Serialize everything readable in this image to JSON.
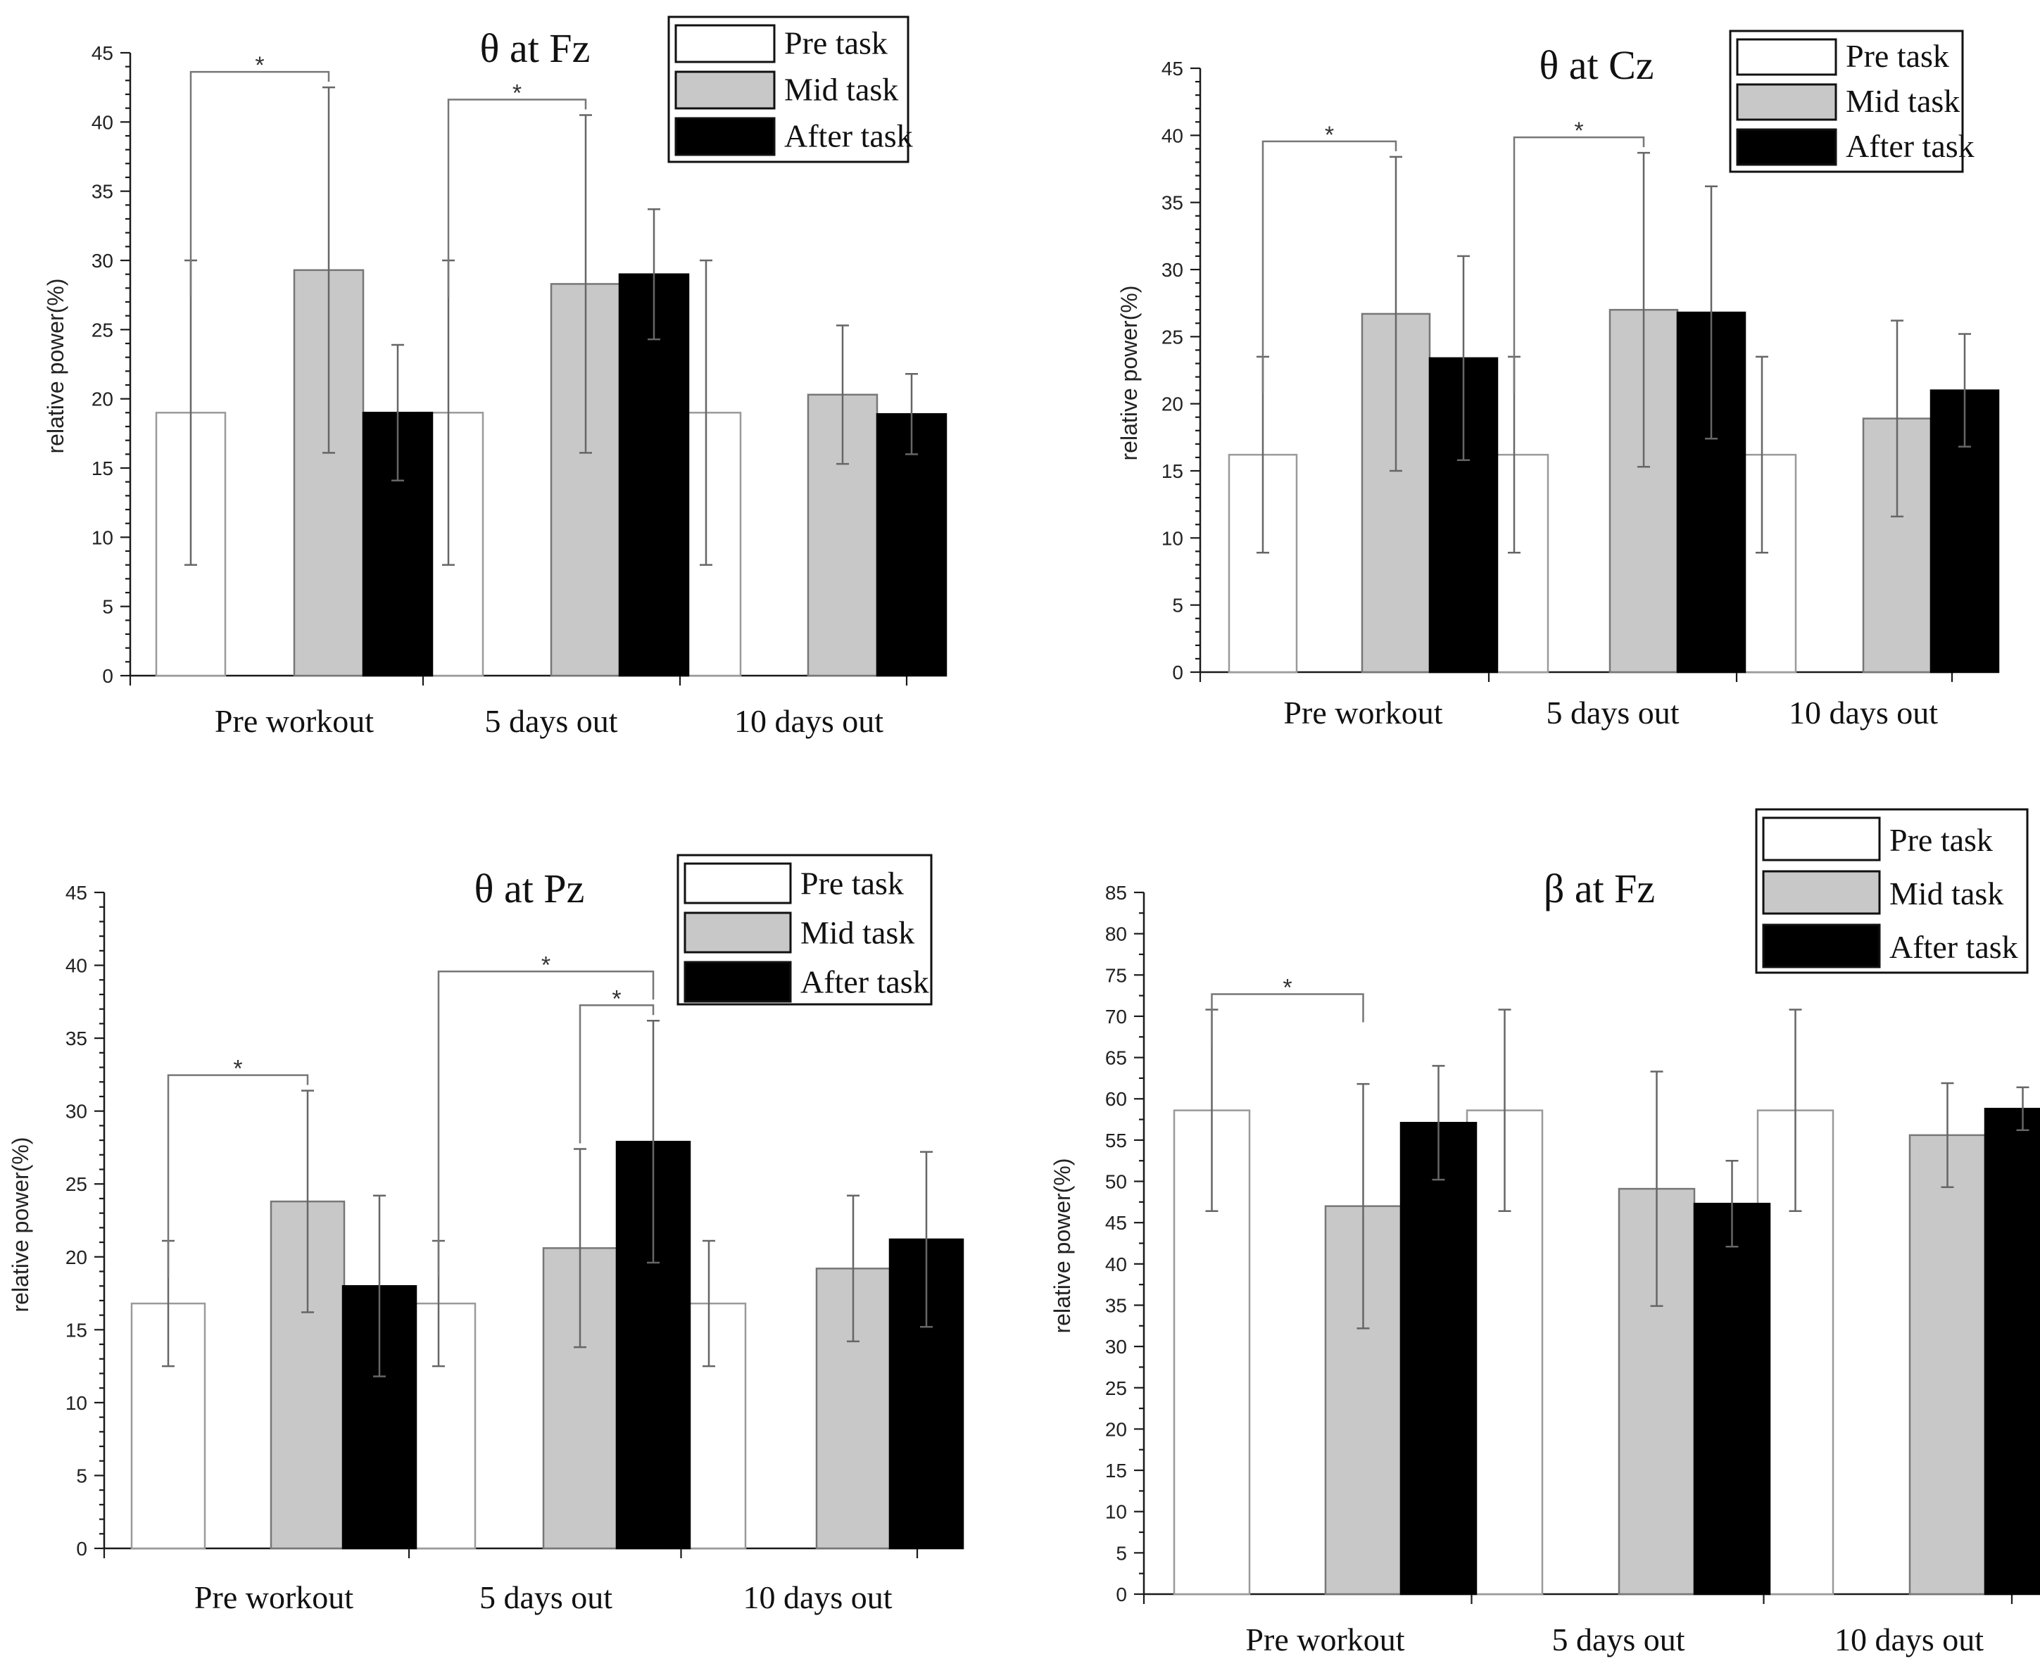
{
  "chart_data": [
    {
      "id": "theta-fz",
      "type": "bar",
      "title": "θ at Fz",
      "xlabel": "",
      "ylabel": "relative power(%)",
      "ylim": [
        0,
        45
      ],
      "ymajor": 5,
      "categories": [
        "Pre workout",
        "5 days out",
        "10 days out"
      ],
      "series": [
        {
          "name": "Pre task",
          "color": "#ffffff",
          "values": [
            19,
            19,
            19
          ],
          "errors": [
            11,
            11,
            11
          ]
        },
        {
          "name": "Mid task",
          "color": "#c8c8c8",
          "values": [
            29.3,
            28.3,
            20.3
          ],
          "errors": [
            13.2,
            12.2,
            5
          ]
        },
        {
          "name": "After task",
          "color": "#000000",
          "values": [
            19,
            29,
            18.9
          ],
          "errors": [
            4.9,
            4.7,
            2.9
          ]
        }
      ],
      "significance": [
        {
          "category": 0,
          "from": 0,
          "to": 1,
          "label": "*"
        },
        {
          "category": 1,
          "from": 0,
          "to": 1,
          "label": "*"
        }
      ],
      "legend": "top-right"
    },
    {
      "id": "theta-cz",
      "type": "bar",
      "title": "θ at Cz",
      "xlabel": "",
      "ylabel": "relative power(%)",
      "ylim": [
        0,
        45
      ],
      "ymajor": 5,
      "categories": [
        "Pre workout",
        "5 days out",
        "10 days out"
      ],
      "series": [
        {
          "name": "Pre task",
          "color": "#ffffff",
          "values": [
            16.2,
            16.2,
            16.2
          ],
          "errors": [
            7.3,
            7.3,
            7.3
          ]
        },
        {
          "name": "Mid task",
          "color": "#c8c8c8",
          "values": [
            26.7,
            27,
            18.9
          ],
          "errors": [
            11.7,
            11.7,
            7.3
          ]
        },
        {
          "name": "After task",
          "color": "#000000",
          "values": [
            23.4,
            26.8,
            21
          ],
          "errors": [
            7.6,
            9.4,
            4.2
          ]
        }
      ],
      "significance": [
        {
          "category": 0,
          "from": 0,
          "to": 1,
          "label": "*"
        },
        {
          "category": 1,
          "from": 0,
          "to": 1,
          "label": "*"
        }
      ],
      "legend": "top-right"
    },
    {
      "id": "theta-pz",
      "type": "bar",
      "title": "θ at Pz",
      "xlabel": "",
      "ylabel": "relative power(%)",
      "ylim": [
        0,
        45
      ],
      "ymajor": 5,
      "categories": [
        "Pre workout",
        "5 days out",
        "10 days out"
      ],
      "series": [
        {
          "name": "Pre task",
          "color": "#ffffff",
          "values": [
            16.8,
            16.8,
            16.8
          ],
          "errors": [
            4.3,
            4.3,
            4.3
          ]
        },
        {
          "name": "Mid task",
          "color": "#c8c8c8",
          "values": [
            23.8,
            20.6,
            19.2
          ],
          "errors": [
            7.6,
            6.8,
            5
          ]
        },
        {
          "name": "After task",
          "color": "#000000",
          "values": [
            18,
            27.9,
            21.2
          ],
          "errors": [
            6.2,
            8.3,
            6
          ]
        }
      ],
      "significance": [
        {
          "category": 0,
          "from": 0,
          "to": 1,
          "label": "*"
        },
        {
          "category": 1,
          "from": 0,
          "to": 2,
          "label": "*"
        },
        {
          "category": 1,
          "from": 1,
          "to": 2,
          "label": "*"
        }
      ],
      "legend": "top-right"
    },
    {
      "id": "beta-fz",
      "type": "bar",
      "title": "β at Fz",
      "xlabel": "",
      "ylabel": "relative power(%)",
      "ylim": [
        0,
        85
      ],
      "ymajor": 5,
      "categories": [
        "Pre workout",
        "5 days out",
        "10 days out"
      ],
      "series": [
        {
          "name": "Pre task",
          "color": "#ffffff",
          "values": [
            58.6,
            58.6,
            58.6
          ],
          "errors": [
            12.2,
            12.2,
            12.2
          ]
        },
        {
          "name": "Mid task",
          "color": "#c8c8c8",
          "values": [
            47,
            49.1,
            55.6
          ],
          "errors": [
            14.8,
            14.2,
            6.3
          ]
        },
        {
          "name": "After task",
          "color": "#000000",
          "values": [
            57.1,
            47.3,
            58.8
          ],
          "errors": [
            6.9,
            5.2,
            2.6
          ]
        }
      ],
      "significance": [
        {
          "category": 0,
          "from": 0,
          "to": 1,
          "label": "*"
        }
      ],
      "legend": "top-right"
    }
  ]
}
